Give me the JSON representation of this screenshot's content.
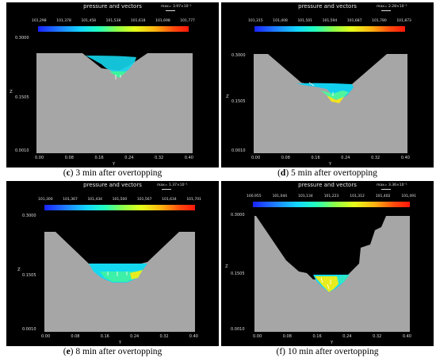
{
  "panels": [
    {
      "title": "pressure and vectors",
      "max_label": "max= 3.97×10⁻¹",
      "ticks": [
        "101,298",
        "101,378",
        "101,458",
        "101,538",
        "101,618",
        "101,698",
        "101,777"
      ],
      "z_top": "0.3000",
      "z_mid": "0.1505",
      "z_bot": "0.0010",
      "z_axis": "Z",
      "y_axis": "Y",
      "x_ticks": [
        "0.00",
        "0.08",
        "0.16",
        "0.24",
        "0.32",
        "0.40"
      ],
      "caption_bold": "c",
      "caption_text": ") 3 min after overtopping"
    },
    {
      "title": "pressure and vectors",
      "max_label": "max= 2.28×10⁻¹",
      "ticks": [
        "101,315",
        "101,408",
        "101,501",
        "101,594",
        "101,687",
        "101,780",
        "101,873"
      ],
      "z_top": "0.3000",
      "z_mid": "0.1505",
      "z_bot": "0.0010",
      "z_axis": "Z",
      "y_axis": "Y",
      "x_ticks": [
        "0.00",
        "0.08",
        "0.16",
        "0.24",
        "0.32",
        "0.40"
      ],
      "caption_bold": "d",
      "caption_text": ") 5 min after overtopping"
    },
    {
      "title": "pressure and vectors",
      "max_label": "max= 1.37×10⁻¹",
      "ticks": [
        "101,300",
        "101,367",
        "101,434",
        "101,500",
        "101,567",
        "101,634",
        "101,701"
      ],
      "z_top": "0.3000",
      "z_mid": "0.1505",
      "z_bot": "0.0010",
      "z_axis": "Z",
      "y_axis": "Y",
      "x_ticks": [
        "0.00",
        "0.08",
        "0.16",
        "0.24",
        "0.32",
        "0.40"
      ],
      "caption_bold": "e",
      "caption_text": ") 8 min after overtopping"
    },
    {
      "title": "pressure and vectors",
      "max_label": "max= 3.36×10⁻¹",
      "ticks": [
        "100,955",
        "101,044",
        "101,134",
        "101,223",
        "101,312",
        "101,402",
        "101,491"
      ],
      "z_top": "0.3000",
      "z_mid": "0.1505",
      "z_bot": "0.0010",
      "z_axis": "Z",
      "y_axis": "Y",
      "x_ticks": [
        "0.00",
        "0.08",
        "0.16",
        "0.24",
        "0.32",
        "0.40"
      ],
      "caption_bold": "",
      "caption_text": "(f) 10 min after overtopping"
    }
  ],
  "colors": {
    "dam": "#a6a6a6",
    "background": "#000000"
  }
}
